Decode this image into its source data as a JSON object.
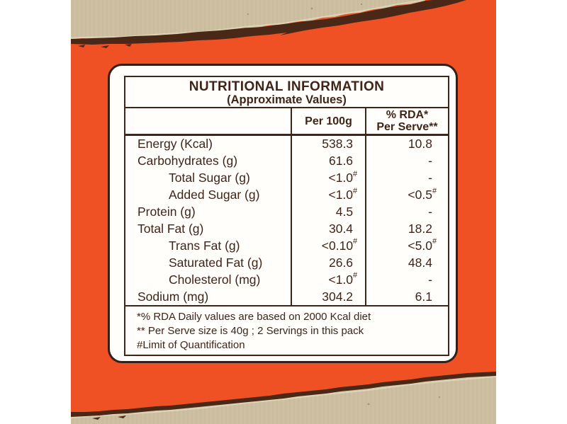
{
  "colors": {
    "page_background": "#ffffff",
    "panel_orange": "#ef5124",
    "cardboard_beige": "#cdc0a2",
    "cardboard_stripe": "#c2b392",
    "tear_dark_brown": "#4a2817",
    "tear_highlight": "#e4d8bd",
    "card_background": "#fffefb",
    "ink_brown": "#3f2419",
    "card_border": "#32201a"
  },
  "table": {
    "title": "NUTRITIONAL INFORMATION",
    "subtitle": "(Approximate Values)",
    "columns": {
      "per100g": "Per 100g",
      "rda_line1": "% RDA*",
      "rda_line2": "Per Serve**"
    },
    "rows": [
      {
        "label": "Energy (Kcal)",
        "indent": false,
        "per100g": "538.3",
        "rda": "10.8"
      },
      {
        "label": "Carbohydrates (g)",
        "indent": false,
        "per100g": "61.6",
        "rda": "-"
      },
      {
        "label": "Total Sugar (g)",
        "indent": true,
        "per100g": "<1.0#",
        "rda": "-"
      },
      {
        "label": "Added Sugar (g)",
        "indent": true,
        "per100g": "<1.0#",
        "rda": "<0.5#"
      },
      {
        "label": "Protein (g)",
        "indent": false,
        "per100g": "4.5",
        "rda": "-"
      },
      {
        "label": "Total Fat (g)",
        "indent": false,
        "per100g": "30.4",
        "rda": "18.2"
      },
      {
        "label": "Trans Fat (g)",
        "indent": true,
        "per100g": "<0.10#",
        "rda": "<5.0#"
      },
      {
        "label": "Saturated Fat (g)",
        "indent": true,
        "per100g": "26.6",
        "rda": "48.4"
      },
      {
        "label": "Cholesterol (mg)",
        "indent": true,
        "per100g": "<1.0#",
        "rda": "-"
      },
      {
        "label": "Sodium (mg)",
        "indent": false,
        "per100g": "304.2",
        "rda": "6.1"
      }
    ],
    "footnotes": [
      "*% RDA Daily values are based on 2000 Kcal diet",
      "** Per Serve size is 40g ; 2 Servings in this pack",
      "#Limit of Quantification"
    ]
  }
}
